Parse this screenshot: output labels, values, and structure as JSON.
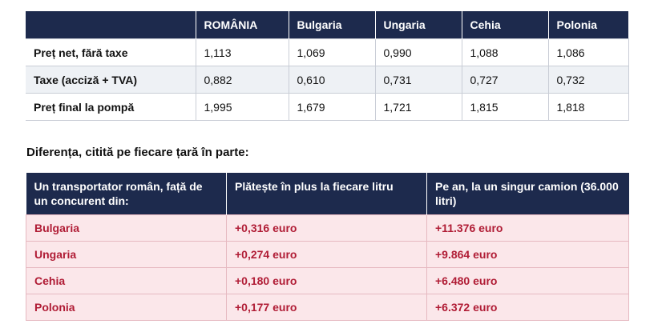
{
  "price_table": {
    "headers": [
      "",
      "ROMÂNIA",
      "Bulgaria",
      "Ungaria",
      "Cehia",
      "Polonia"
    ],
    "rows": [
      {
        "label": "Preț net, fără taxe",
        "values": [
          "1,113",
          "1,069",
          "0,990",
          "1,088",
          "1,086"
        ]
      },
      {
        "label": "Taxe (acciză + TVA)",
        "values": [
          "0,882",
          "0,610",
          "0,731",
          "0,727",
          "0,732"
        ]
      },
      {
        "label": "Preț final la pompă",
        "values": [
          "1,995",
          "1,679",
          "1,721",
          "1,815",
          "1,818"
        ]
      }
    ]
  },
  "section_heading": "Diferența, citită pe fiecare țară în parte:",
  "diff_table": {
    "headers": [
      "Un transportator român, față de un concurent din:",
      "Plătește în plus la fiecare litru",
      "Pe an, la un singur camion (36.000 litri)"
    ],
    "rows": [
      {
        "country": "Bulgaria",
        "per_litre": "+0,316 euro",
        "per_year": "+11.376 euro"
      },
      {
        "country": "Ungaria",
        "per_litre": "+0,274 euro",
        "per_year": "+9.864 euro"
      },
      {
        "country": "Cehia",
        "per_litre": "+0,180 euro",
        "per_year": "+6.480 euro"
      },
      {
        "country": "Polonia",
        "per_litre": "+0,177 euro",
        "per_year": "+6.372 euro"
      }
    ]
  },
  "colors": {
    "header_bg": "#1d2a4d",
    "alt_row_bg": "#eef1f5",
    "diff_row_bg": "#fbe7ea",
    "diff_text": "#b01c35"
  }
}
